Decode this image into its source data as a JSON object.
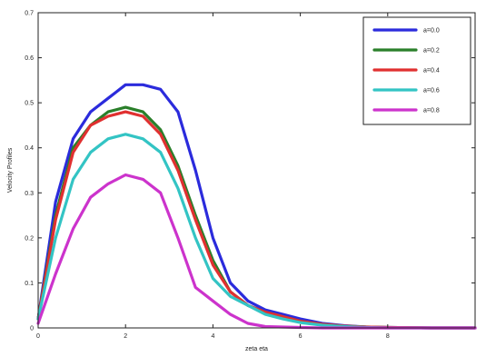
{
  "chart_data": {
    "type": "line",
    "title": "",
    "xlabel": "zeta eta",
    "ylabel": "Velocity Profiles",
    "xlim": [
      0,
      10
    ],
    "ylim": [
      0,
      0.7
    ],
    "xticks": [
      "0",
      "2",
      "4",
      "6",
      "8"
    ],
    "yticks": [
      "0",
      "0.1",
      "0.2",
      "0.3",
      "0.4",
      "0.5",
      "0.6",
      "0.7"
    ],
    "grid": false,
    "legend_position": "top-right",
    "x": [
      0,
      0.4,
      0.8,
      1.2,
      1.6,
      2.0,
      2.4,
      2.8,
      3.2,
      3.6,
      4.0,
      4.4,
      4.8,
      5.2,
      5.6,
      6.0,
      6.5,
      7.0,
      7.5,
      8.0,
      9.0,
      10.0
    ],
    "series": [
      {
        "name": "a=0.0",
        "color": "#2b2bdc",
        "values": [
          0.02,
          0.28,
          0.42,
          0.48,
          0.51,
          0.54,
          0.54,
          0.53,
          0.48,
          0.35,
          0.2,
          0.1,
          0.06,
          0.04,
          0.03,
          0.02,
          0.01,
          0.005,
          0.002,
          0.001,
          0.0,
          0.0
        ]
      },
      {
        "name": "a=0.2",
        "color": "#2a7f2a",
        "values": [
          0.02,
          0.25,
          0.4,
          0.45,
          0.48,
          0.49,
          0.48,
          0.44,
          0.36,
          0.25,
          0.15,
          0.08,
          0.05,
          0.035,
          0.025,
          0.015,
          0.008,
          0.004,
          0.002,
          0.001,
          0.0,
          0.0
        ]
      },
      {
        "name": "a=0.4",
        "color": "#e03030",
        "values": [
          0.02,
          0.24,
          0.39,
          0.45,
          0.47,
          0.48,
          0.47,
          0.43,
          0.35,
          0.24,
          0.14,
          0.08,
          0.05,
          0.035,
          0.025,
          0.015,
          0.008,
          0.004,
          0.002,
          0.001,
          0.0,
          0.0
        ]
      },
      {
        "name": "a=0.6",
        "color": "#33c4c4",
        "values": [
          0.02,
          0.2,
          0.33,
          0.39,
          0.42,
          0.43,
          0.42,
          0.39,
          0.31,
          0.2,
          0.11,
          0.07,
          0.05,
          0.03,
          0.02,
          0.012,
          0.006,
          0.003,
          0.001,
          0.0,
          0.0,
          0.0
        ]
      },
      {
        "name": "a=0.8",
        "color": "#cc33cc",
        "values": [
          0.01,
          0.12,
          0.22,
          0.29,
          0.32,
          0.34,
          0.33,
          0.3,
          0.2,
          0.09,
          0.06,
          0.03,
          0.01,
          0.003,
          0.002,
          0.001,
          0.0,
          0.0,
          0.0,
          0.0,
          0.0,
          0.0
        ]
      }
    ]
  }
}
